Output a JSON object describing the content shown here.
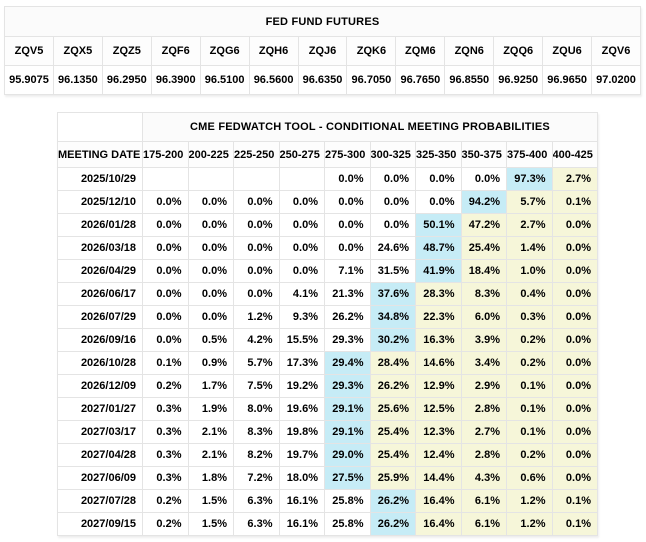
{
  "colors": {
    "highlight_max": "#c6ecf6",
    "highlight_tail": "#f6f6d9"
  },
  "futures": {
    "title": "FED FUND FUTURES",
    "contracts": [
      "ZQV5",
      "ZQX5",
      "ZQZ5",
      "ZQF6",
      "ZQG6",
      "ZQH6",
      "ZQJ6",
      "ZQK6",
      "ZQM6",
      "ZQN6",
      "ZQQ6",
      "ZQU6",
      "ZQV6"
    ],
    "prices": [
      "95.9075",
      "96.1350",
      "96.2950",
      "96.3900",
      "96.5100",
      "96.5600",
      "96.6350",
      "96.7050",
      "96.7650",
      "96.8550",
      "96.9250",
      "96.9650",
      "97.0200"
    ]
  },
  "fedwatch": {
    "title": "CME FEDWATCH TOOL - CONDITIONAL MEETING PROBABILITIES",
    "date_header": "MEETING DATE",
    "rate_ranges": [
      "175-200",
      "200-225",
      "225-250",
      "250-275",
      "275-300",
      "300-325",
      "325-350",
      "350-375",
      "375-400",
      "400-425"
    ],
    "rows": [
      {
        "date": "2025/10/29",
        "values": [
          "",
          "",
          "",
          "",
          "0.0%",
          "0.0%",
          "0.0%",
          "0.0%",
          "97.3%",
          "2.7%"
        ],
        "max_col": 8
      },
      {
        "date": "2025/12/10",
        "values": [
          "0.0%",
          "0.0%",
          "0.0%",
          "0.0%",
          "0.0%",
          "0.0%",
          "0.0%",
          "94.2%",
          "5.7%",
          "0.1%"
        ],
        "max_col": 7
      },
      {
        "date": "2026/01/28",
        "values": [
          "0.0%",
          "0.0%",
          "0.0%",
          "0.0%",
          "0.0%",
          "0.0%",
          "50.1%",
          "47.2%",
          "2.7%",
          "0.0%"
        ],
        "max_col": 6
      },
      {
        "date": "2026/03/18",
        "values": [
          "0.0%",
          "0.0%",
          "0.0%",
          "0.0%",
          "0.0%",
          "24.6%",
          "48.7%",
          "25.4%",
          "1.4%",
          "0.0%"
        ],
        "max_col": 6
      },
      {
        "date": "2026/04/29",
        "values": [
          "0.0%",
          "0.0%",
          "0.0%",
          "0.0%",
          "7.1%",
          "31.5%",
          "41.9%",
          "18.4%",
          "1.0%",
          "0.0%"
        ],
        "max_col": 6
      },
      {
        "date": "2026/06/17",
        "values": [
          "0.0%",
          "0.0%",
          "0.0%",
          "4.1%",
          "21.3%",
          "37.6%",
          "28.3%",
          "8.3%",
          "0.4%",
          "0.0%"
        ],
        "max_col": 5
      },
      {
        "date": "2026/07/29",
        "values": [
          "0.0%",
          "0.0%",
          "1.2%",
          "9.3%",
          "26.2%",
          "34.8%",
          "22.3%",
          "6.0%",
          "0.3%",
          "0.0%"
        ],
        "max_col": 5
      },
      {
        "date": "2026/09/16",
        "values": [
          "0.0%",
          "0.5%",
          "4.2%",
          "15.5%",
          "29.3%",
          "30.2%",
          "16.3%",
          "3.9%",
          "0.2%",
          "0.0%"
        ],
        "max_col": 5
      },
      {
        "date": "2026/10/28",
        "values": [
          "0.1%",
          "0.9%",
          "5.7%",
          "17.3%",
          "29.4%",
          "28.4%",
          "14.6%",
          "3.4%",
          "0.2%",
          "0.0%"
        ],
        "max_col": 4
      },
      {
        "date": "2026/12/09",
        "values": [
          "0.2%",
          "1.7%",
          "7.5%",
          "19.2%",
          "29.3%",
          "26.2%",
          "12.9%",
          "2.9%",
          "0.1%",
          "0.0%"
        ],
        "max_col": 4
      },
      {
        "date": "2027/01/27",
        "values": [
          "0.3%",
          "1.9%",
          "8.0%",
          "19.6%",
          "29.1%",
          "25.6%",
          "12.5%",
          "2.8%",
          "0.1%",
          "0.0%"
        ],
        "max_col": 4
      },
      {
        "date": "2027/03/17",
        "values": [
          "0.3%",
          "2.1%",
          "8.3%",
          "19.8%",
          "29.1%",
          "25.4%",
          "12.3%",
          "2.7%",
          "0.1%",
          "0.0%"
        ],
        "max_col": 4
      },
      {
        "date": "2027/04/28",
        "values": [
          "0.3%",
          "2.1%",
          "8.2%",
          "19.7%",
          "29.0%",
          "25.4%",
          "12.4%",
          "2.8%",
          "0.2%",
          "0.0%"
        ],
        "max_col": 4
      },
      {
        "date": "2027/06/09",
        "values": [
          "0.3%",
          "1.8%",
          "7.2%",
          "18.0%",
          "27.5%",
          "25.9%",
          "14.4%",
          "4.3%",
          "0.6%",
          "0.0%"
        ],
        "max_col": 4
      },
      {
        "date": "2027/07/28",
        "values": [
          "0.2%",
          "1.5%",
          "6.3%",
          "16.1%",
          "25.8%",
          "26.2%",
          "16.4%",
          "6.1%",
          "1.2%",
          "0.1%"
        ],
        "max_col": 5
      },
      {
        "date": "2027/09/15",
        "values": [
          "0.2%",
          "1.5%",
          "6.3%",
          "16.1%",
          "25.8%",
          "26.2%",
          "16.4%",
          "6.1%",
          "1.2%",
          "0.1%"
        ],
        "max_col": 5
      }
    ]
  }
}
